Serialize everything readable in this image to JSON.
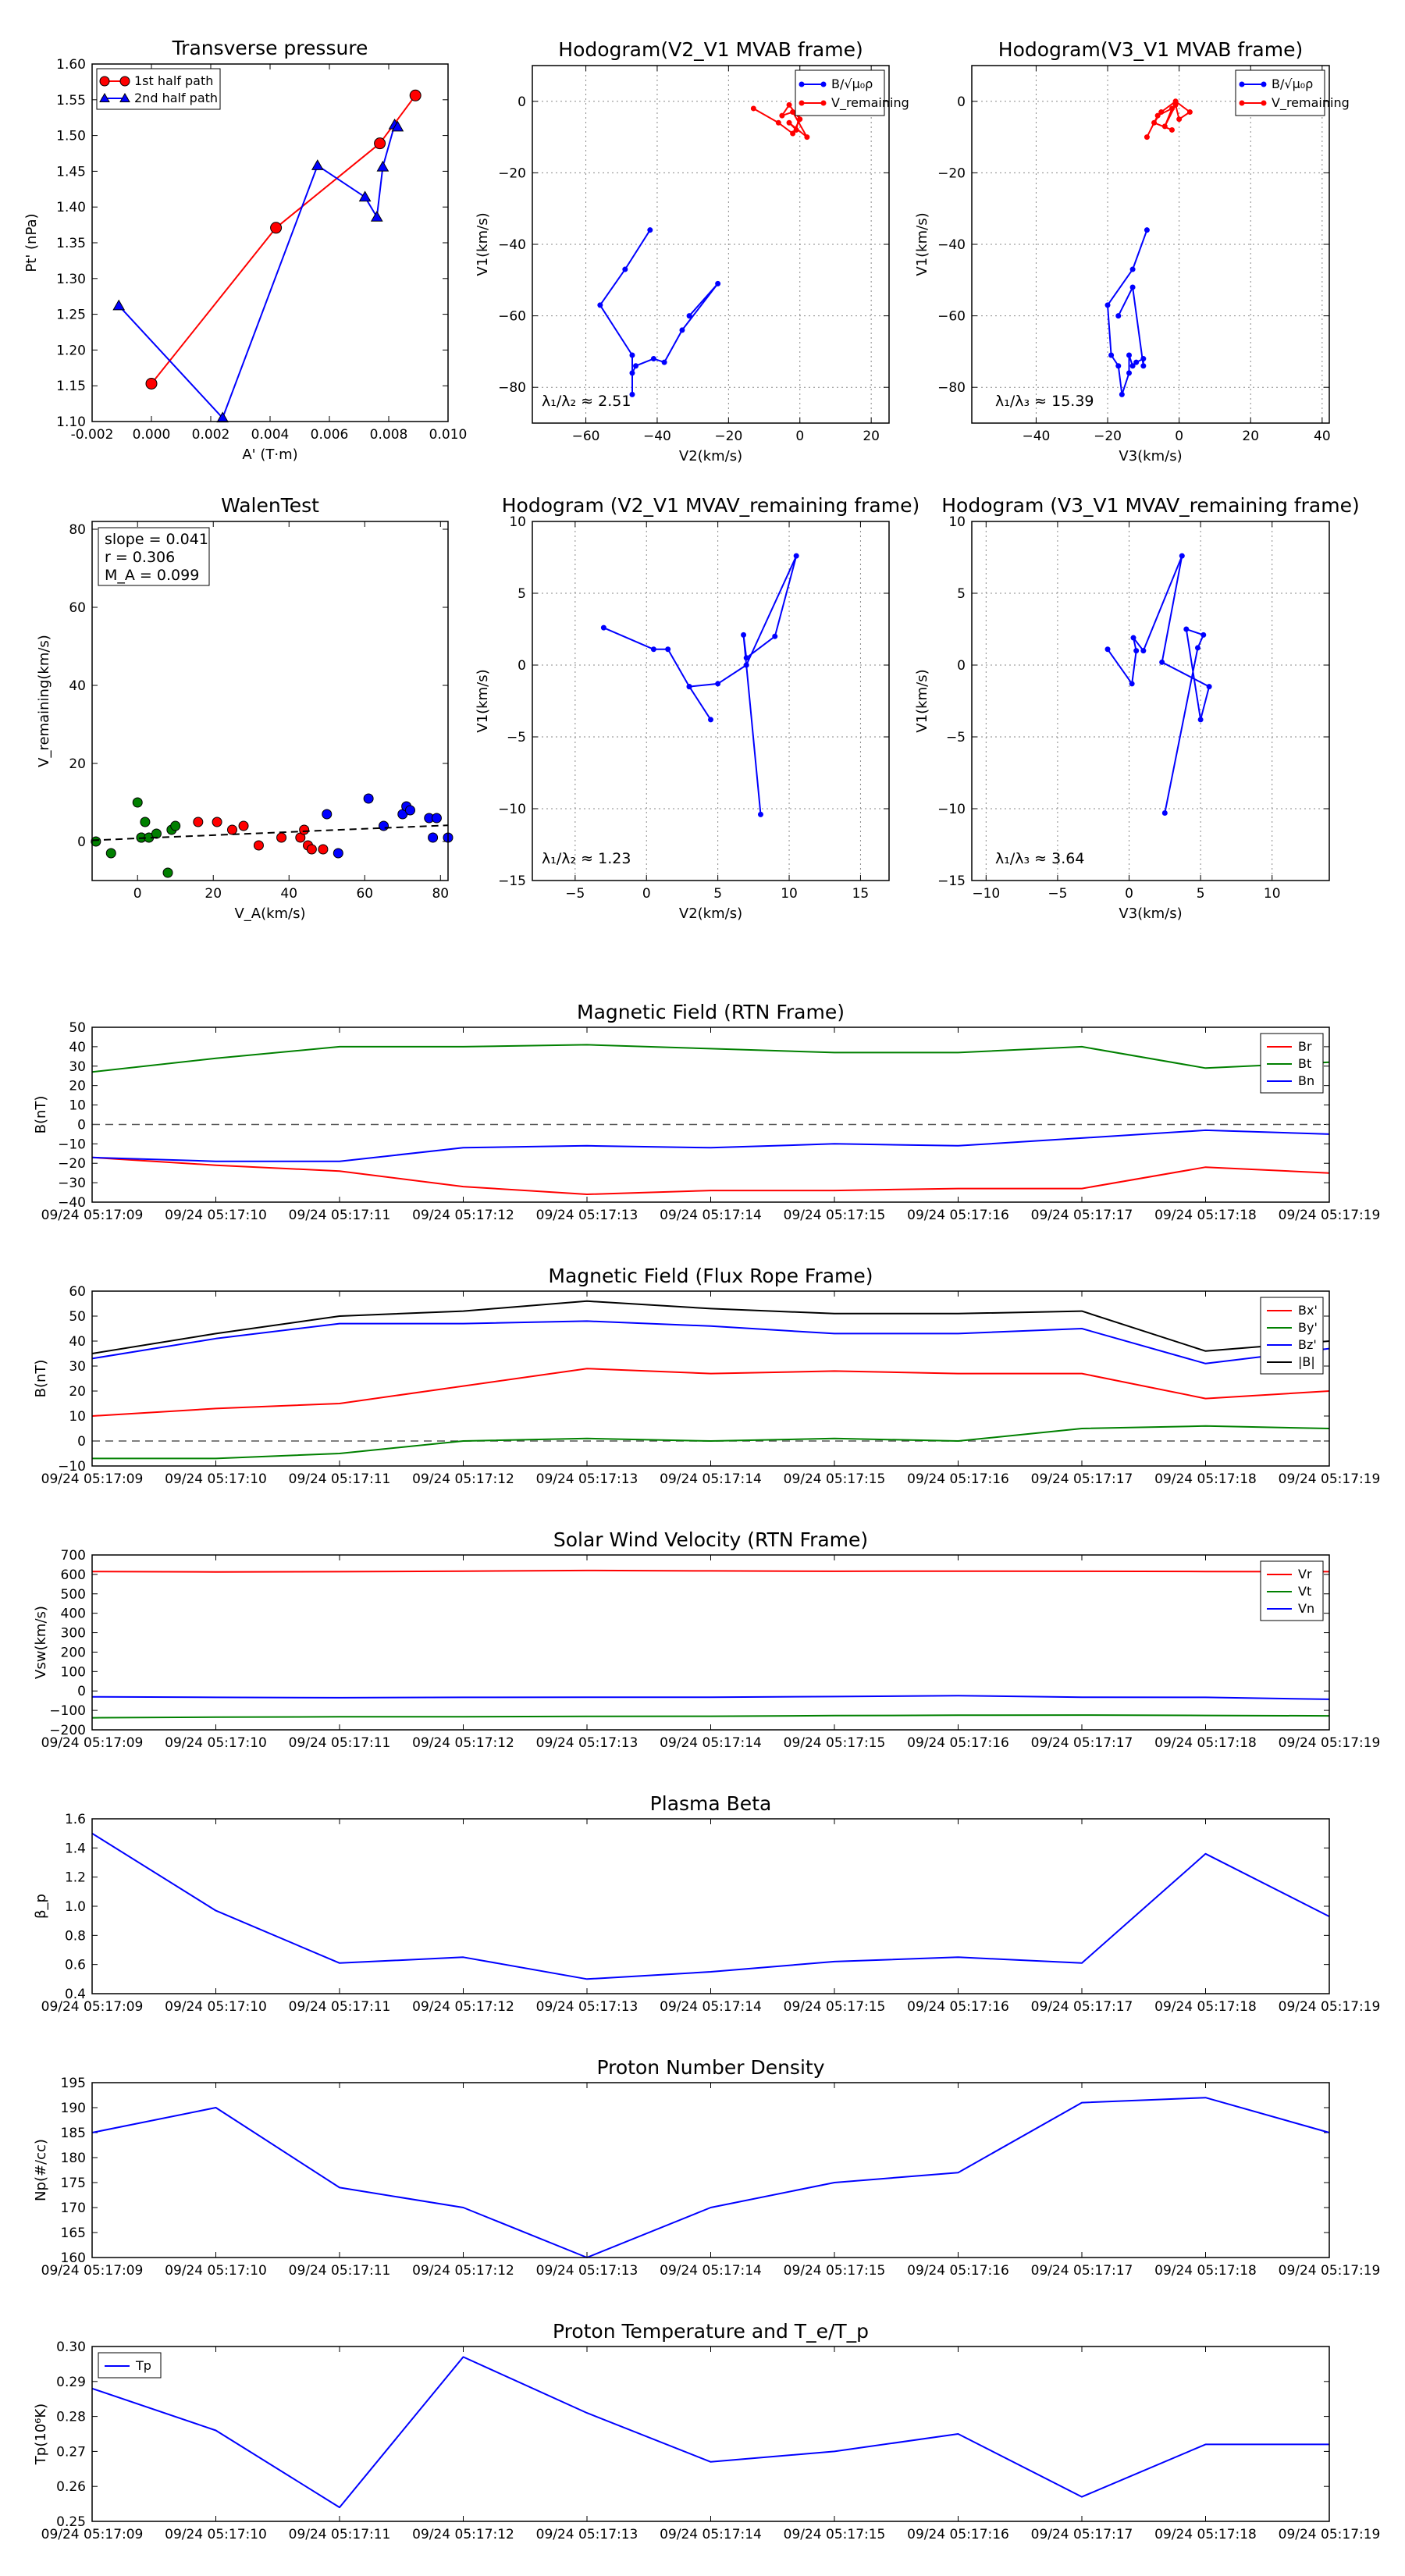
{
  "panels": {
    "transverse_pressure": {
      "title": "Transverse pressure",
      "xlabel": "A' (T·m)",
      "ylabel": "Pt' (nPa)",
      "xlim": [
        -0.002,
        0.01
      ],
      "ylim": [
        1.1,
        1.6
      ],
      "xticks": [
        "-0.002",
        "0.000",
        "0.002",
        "0.004",
        "0.006",
        "0.008",
        "0.010"
      ],
      "yticks": [
        "1.10",
        "1.15",
        "1.20",
        "1.25",
        "1.30",
        "1.35",
        "1.40",
        "1.45",
        "1.50",
        "1.55",
        "1.60"
      ],
      "legend": [
        "1st half path",
        "2nd half path"
      ]
    },
    "hodo_v2v1_mvab": {
      "title": "Hodogram(V2_V1 MVAB frame)",
      "xlabel": "V2(km/s)",
      "ylabel": "V1(km/s)",
      "xlim": [
        -75,
        25
      ],
      "ylim": [
        -90,
        10
      ],
      "xticks": [
        "−60",
        "−40",
        "−20",
        "0",
        "20"
      ],
      "yticks": [
        "0",
        "−20",
        "−40",
        "−60",
        "−80"
      ],
      "ratio_label": "λ₁/λ₂ ≈ 2.51",
      "legend": [
        "B/√μ₀ρ",
        "V_remaining"
      ]
    },
    "hodo_v3v1_mvab": {
      "title": "Hodogram(V3_V1 MVAB frame)",
      "xlabel": "V3(km/s)",
      "ylabel": "V1(km/s)",
      "xlim": [
        -58,
        42
      ],
      "ylim": [
        -90,
        10
      ],
      "xticks": [
        "−40",
        "−20",
        "0",
        "20",
        "40"
      ],
      "yticks": [
        "0",
        "−20",
        "−40",
        "−60",
        "−80"
      ],
      "ratio_label": "λ₁/λ₃ ≈ 15.39",
      "legend": [
        "B/√μ₀ρ",
        "V_remaining"
      ]
    },
    "walen": {
      "title": "WalenTest",
      "xlabel": "V_A(km/s)",
      "ylabel": "V_remaining(km/s)",
      "xlim": [
        -12,
        82
      ],
      "ylim": [
        -10,
        82
      ],
      "xticks": [
        "0",
        "20",
        "40",
        "60",
        "80"
      ],
      "yticks": [
        "0",
        "20",
        "40",
        "60",
        "80"
      ],
      "stats": [
        "slope = 0.041",
        "r = 0.306",
        "M_A = 0.099"
      ]
    },
    "hodo_v2v1_mvav": {
      "title": "Hodogram (V2_V1 MVAV_remaining frame)",
      "xlabel": "V2(km/s)",
      "ylabel": "V1(km/s)",
      "xlim": [
        -8,
        17
      ],
      "ylim": [
        -15,
        10
      ],
      "xticks": [
        "−5",
        "0",
        "5",
        "10",
        "15"
      ],
      "yticks": [
        "10",
        "5",
        "0",
        "−5",
        "−10",
        "−15"
      ],
      "ratio_label": "λ₁/λ₂ ≈ 1.23"
    },
    "hodo_v3v1_mvav": {
      "title": "Hodogram (V3_V1 MVAV_remaining frame)",
      "xlabel": "V3(km/s)",
      "ylabel": "V1(km/s)",
      "xlim": [
        -11,
        14
      ],
      "ylim": [
        -15,
        10
      ],
      "xticks": [
        "−10",
        "−5",
        "0",
        "5",
        "10"
      ],
      "yticks": [
        "10",
        "5",
        "0",
        "−5",
        "−10",
        "−15"
      ],
      "ratio_label": "λ₁/λ₃ ≈ 3.64"
    },
    "bfield_rtn": {
      "title": "Magnetic Field (RTN Frame)",
      "ylabel": "B(nT)",
      "yticks": [
        "50",
        "40",
        "30",
        "20",
        "10",
        "0",
        "−10",
        "−20",
        "−30",
        "−40"
      ],
      "legend": [
        "Br",
        "Bt",
        "Bn"
      ]
    },
    "bfield_fr": {
      "title": "Magnetic Field (Flux Rope Frame)",
      "ylabel": "B(nT)",
      "yticks": [
        "60",
        "50",
        "40",
        "30",
        "20",
        "10",
        "0",
        "−10"
      ],
      "legend": [
        "Bx'",
        "By'",
        "Bz'",
        "|B|"
      ]
    },
    "vsw": {
      "title": "Solar Wind Velocity (RTN Frame)",
      "ylabel": "Vsw(km/s)",
      "yticks": [
        "700",
        "600",
        "500",
        "400",
        "300",
        "200",
        "100",
        "0",
        "−100",
        "−200"
      ],
      "legend": [
        "Vr",
        "Vt",
        "Vn"
      ]
    },
    "beta": {
      "title": "Plasma Beta",
      "ylabel": "β_p",
      "yticks": [
        "1.6",
        "1.4",
        "1.2",
        "1.0",
        "0.8",
        "0.6",
        "0.4"
      ]
    },
    "density": {
      "title": "Proton Number Density",
      "ylabel": "Np(#/cc)",
      "yticks": [
        "195",
        "190",
        "185",
        "180",
        "175",
        "170",
        "165",
        "160"
      ]
    },
    "temperature": {
      "title": "Proton Temperature and T_e/T_p",
      "ylabel": "Tp(10⁶K)",
      "yticks": [
        "0.30",
        "0.29",
        "0.28",
        "0.27",
        "0.26",
        "0.25"
      ],
      "legend": [
        "Tp"
      ]
    }
  },
  "time_ticks": [
    "09/24 05:17:09",
    "09/24 05:17:10",
    "09/24 05:17:11",
    "09/24 05:17:12",
    "09/24 05:17:13",
    "09/24 05:17:14",
    "09/24 05:17:15",
    "09/24 05:17:16",
    "09/24 05:17:17",
    "09/24 05:17:18",
    "09/24 05:17:19"
  ],
  "chart_data": [
    {
      "id": "transverse_pressure",
      "type": "line",
      "series": [
        {
          "name": "1st half path",
          "color": "#ff0000",
          "x": [
            0.0,
            0.0042,
            0.0077,
            0.0089
          ],
          "y": [
            1.153,
            1.371,
            1.489,
            1.556
          ]
        },
        {
          "name": "2nd half path",
          "color": "#0000ff",
          "x": [
            -0.0011,
            0.0024,
            0.0056,
            0.0072,
            0.0076,
            0.0078,
            0.0082,
            0.0083
          ],
          "y": [
            1.262,
            1.105,
            1.458,
            1.414,
            1.386,
            1.456,
            1.515,
            1.512
          ]
        }
      ]
    },
    {
      "id": "hodo_v2v1_mvab",
      "type": "line",
      "series": [
        {
          "name": "B/√μ₀ρ",
          "color": "#0000ff",
          "x": [
            -42,
            -49,
            -56,
            -47,
            -47,
            -47,
            -46,
            -41,
            -38,
            -33,
            -23,
            -31
          ],
          "y": [
            -36,
            -47,
            -57,
            -71,
            -82,
            -76,
            -74,
            -72,
            -73,
            -64,
            -51,
            -60
          ]
        },
        {
          "name": "V_remaining",
          "color": "#ff0000",
          "x": [
            -13,
            -6,
            -2,
            0,
            -3,
            -5,
            -2,
            2,
            -3,
            -1,
            0
          ],
          "y": [
            -2,
            -6,
            -9,
            -5,
            -1,
            -4,
            -3,
            -10,
            -6,
            -8,
            -3
          ]
        }
      ]
    },
    {
      "id": "hodo_v3v1_mvab",
      "type": "line",
      "series": [
        {
          "name": "B/√μ₀ρ",
          "color": "#0000ff",
          "x": [
            -9,
            -13,
            -20,
            -19,
            -17,
            -16,
            -14,
            -14,
            -13,
            -12,
            -10,
            -10,
            -13,
            -17
          ],
          "y": [
            -36,
            -47,
            -57,
            -71,
            -74,
            -82,
            -76,
            -71,
            -74,
            -73,
            -72,
            -74,
            -52,
            -60
          ]
        },
        {
          "name": "V_remaining",
          "color": "#ff0000",
          "x": [
            -9,
            -6,
            -2,
            -4,
            -1,
            0,
            3,
            -1,
            -5,
            -7,
            -2
          ],
          "y": [
            -10,
            -4,
            -2,
            -7,
            -1,
            -5,
            -3,
            0,
            -3,
            -6,
            -8
          ]
        }
      ]
    },
    {
      "id": "walen",
      "type": "scatter",
      "series": [
        {
          "name": "green",
          "color": "#008000",
          "x": [
            -11,
            -7,
            0,
            1,
            1,
            2,
            3,
            5,
            8,
            9,
            10
          ],
          "y": [
            0,
            -3,
            10,
            1,
            1,
            5,
            1,
            2,
            -8,
            3,
            4
          ]
        },
        {
          "name": "red",
          "color": "#ff0000",
          "x": [
            16,
            21,
            25,
            28,
            32,
            38,
            43,
            44,
            45,
            46,
            49
          ],
          "y": [
            5,
            5,
            3,
            4,
            -1,
            1,
            1,
            3,
            -1,
            -2,
            -2
          ]
        },
        {
          "name": "blue",
          "color": "#0000ff",
          "x": [
            50,
            53,
            61,
            65,
            70,
            71,
            72,
            77,
            78,
            79,
            82
          ],
          "y": [
            7,
            -3,
            11,
            4,
            7,
            9,
            8,
            6,
            1,
            6,
            1
          ]
        }
      ],
      "fit": {
        "slope": 0.041,
        "intercept": 0.8
      }
    },
    {
      "id": "hodo_v2v1_mvav",
      "type": "line",
      "series": [
        {
          "name": "V",
          "color": "#0000ff",
          "x": [
            -3,
            0.5,
            1.5,
            3,
            4.5,
            3,
            5,
            7,
            10.5,
            9,
            7,
            6.8,
            8
          ],
          "y": [
            2.6,
            1.1,
            1.1,
            -1.5,
            -3.8,
            -1.5,
            -1.3,
            0,
            7.6,
            2,
            0.5,
            2.1,
            -10.4
          ]
        }
      ]
    },
    {
      "id": "hodo_v3v1_mvav",
      "type": "line",
      "series": [
        {
          "name": "V",
          "color": "#0000ff",
          "x": [
            -1.5,
            0.2,
            0.5,
            0.3,
            1,
            3.7,
            2.3,
            5.6,
            5,
            4,
            5.2,
            4.8,
            2.5
          ],
          "y": [
            1.1,
            -1.3,
            1,
            1.9,
            1,
            7.6,
            0.2,
            -1.5,
            -3.8,
            2.5,
            2.1,
            1.2,
            -10.3
          ]
        }
      ]
    },
    {
      "id": "bfield_rtn",
      "type": "line",
      "ylim": [
        -40,
        50
      ],
      "series": [
        {
          "name": "Br",
          "color": "#ff0000",
          "y": [
            -17,
            -21,
            -24,
            -32,
            -36,
            -34,
            -34,
            -33,
            -33,
            -22,
            -25
          ]
        },
        {
          "name": "Bt",
          "color": "#008000",
          "y": [
            27,
            34,
            40,
            40,
            41,
            39,
            37,
            37,
            40,
            29,
            32
          ]
        },
        {
          "name": "Bn",
          "color": "#0000ff",
          "y": [
            -17,
            -19,
            -19,
            -12,
            -11,
            -12,
            -10,
            -11,
            -7,
            -3,
            -5
          ]
        }
      ]
    },
    {
      "id": "bfield_fr",
      "type": "line",
      "ylim": [
        -10,
        60
      ],
      "series": [
        {
          "name": "Bx'",
          "color": "#ff0000",
          "y": [
            10,
            13,
            15,
            22,
            29,
            27,
            28,
            27,
            27,
            17,
            20
          ]
        },
        {
          "name": "By'",
          "color": "#008000",
          "y": [
            -7,
            -7,
            -5,
            0,
            1,
            0,
            1,
            0,
            5,
            6,
            5
          ]
        },
        {
          "name": "Bz'",
          "color": "#0000ff",
          "y": [
            33,
            41,
            47,
            47,
            48,
            46,
            43,
            43,
            45,
            31,
            37
          ]
        },
        {
          "name": "|B|",
          "color": "#000000",
          "y": [
            35,
            43,
            50,
            52,
            56,
            53,
            51,
            51,
            52,
            36,
            40
          ]
        }
      ]
    },
    {
      "id": "vsw",
      "type": "line",
      "ylim": [
        -200,
        700
      ],
      "series": [
        {
          "name": "Vr",
          "color": "#ff0000",
          "y": [
            615,
            613,
            614,
            617,
            620,
            618,
            616,
            617,
            616,
            615,
            614
          ]
        },
        {
          "name": "Vt",
          "color": "#008000",
          "y": [
            -138,
            -135,
            -133,
            -133,
            -131,
            -130,
            -127,
            -125,
            -124,
            -126,
            -128
          ]
        },
        {
          "name": "Vn",
          "color": "#0000ff",
          "y": [
            -30,
            -33,
            -35,
            -33,
            -32,
            -32,
            -29,
            -24,
            -32,
            -33,
            -43
          ]
        }
      ]
    },
    {
      "id": "beta",
      "type": "line",
      "ylim": [
        0.4,
        1.6
      ],
      "series": [
        {
          "name": "beta",
          "color": "#0000ff",
          "y": [
            1.5,
            0.97,
            0.61,
            0.65,
            0.5,
            0.55,
            0.62,
            0.65,
            0.61,
            1.36,
            0.93
          ]
        }
      ]
    },
    {
      "id": "density",
      "type": "line",
      "ylim": [
        160,
        195
      ],
      "series": [
        {
          "name": "Np",
          "color": "#0000ff",
          "y": [
            185,
            190,
            174,
            170,
            160,
            170,
            175,
            177,
            191,
            192,
            185
          ]
        }
      ]
    },
    {
      "id": "temperature",
      "type": "line",
      "ylim": [
        0.25,
        0.3
      ],
      "series": [
        {
          "name": "Tp",
          "color": "#0000ff",
          "y": [
            0.288,
            0.276,
            0.254,
            0.297,
            0.281,
            0.267,
            0.27,
            0.275,
            0.257,
            0.272,
            0.272
          ]
        }
      ]
    }
  ]
}
